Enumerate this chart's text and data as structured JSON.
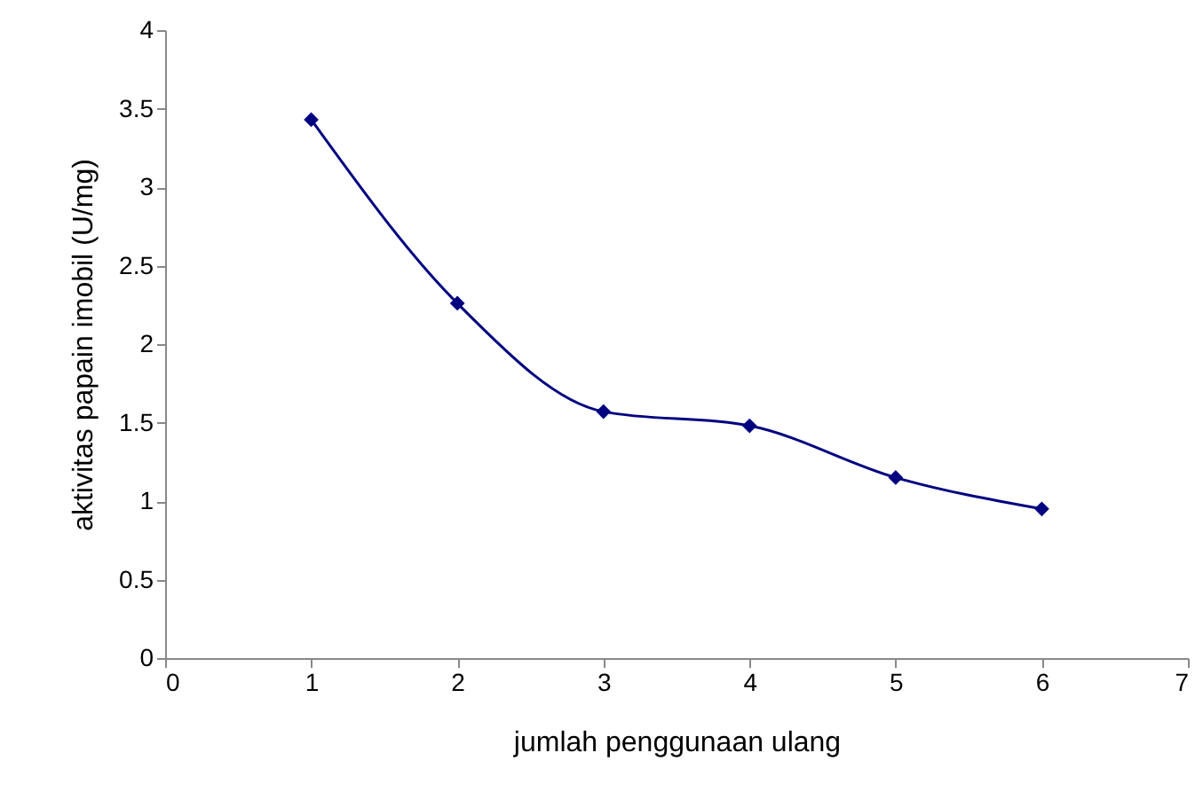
{
  "chart_data": {
    "type": "line",
    "xlabel": "jumlah penggunaan ulang",
    "ylabel": "aktivitas papain imobil (U/mg)",
    "x": [
      1,
      2,
      3,
      4,
      5,
      6
    ],
    "series": [
      {
        "color": "#000080",
        "values": [
          3.43,
          2.26,
          1.57,
          1.48,
          1.15,
          0.95
        ]
      }
    ],
    "xlim": [
      0,
      7
    ],
    "xticks": [
      0,
      1,
      2,
      3,
      4,
      5,
      6,
      7
    ],
    "ylim": [
      0,
      4
    ],
    "yticks": [
      0,
      0.5,
      1,
      1.5,
      2,
      2.5,
      3,
      3.5,
      4
    ],
    "grid": false,
    "marker": "diamond",
    "line_style": "solid"
  }
}
